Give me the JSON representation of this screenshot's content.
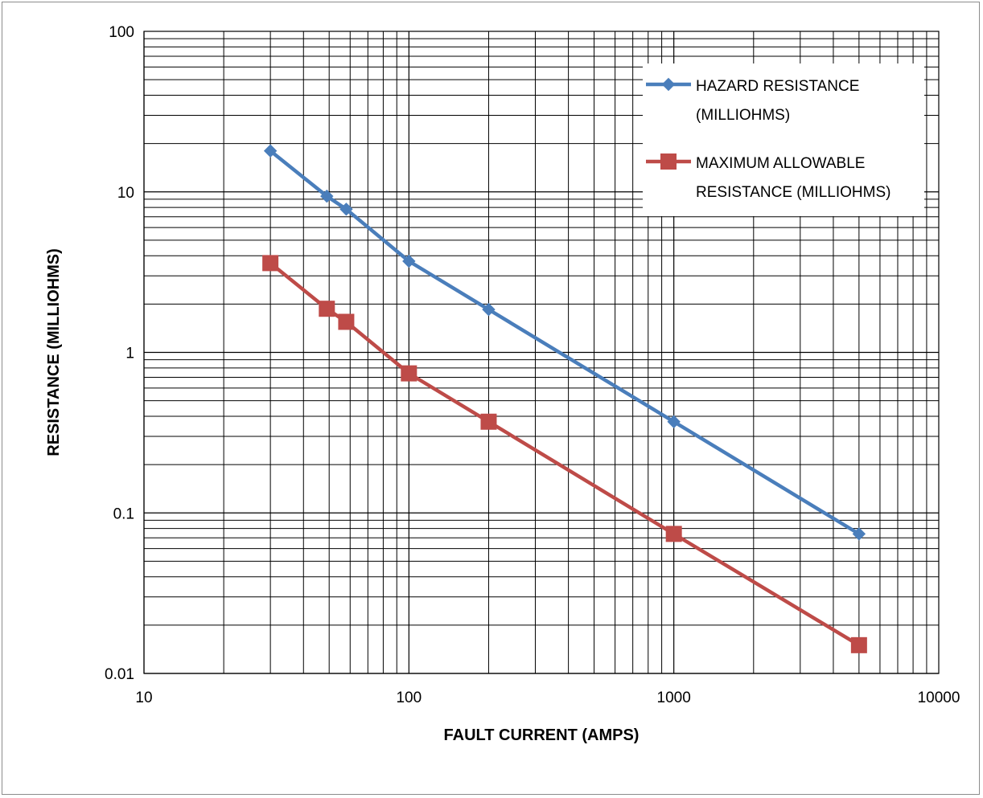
{
  "chart_data": {
    "type": "line",
    "xlabel": "FAULT CURRENT (AMPS)",
    "ylabel": "RESISTANCE  (MILLIOHMS)",
    "x_scale": "log",
    "y_scale": "log",
    "xlim": [
      10,
      10000
    ],
    "ylim": [
      0.01,
      100
    ],
    "x_ticks": [
      "10",
      "100",
      "1000",
      "10000"
    ],
    "y_ticks": [
      "100",
      "10",
      "1",
      "0.1",
      "0.01"
    ],
    "grid": true,
    "legend_position": "top-right",
    "series": [
      {
        "name": "HAZARD RESISTANCE (MILLIOHMS)",
        "legend_lines": [
          "HAZARD RESISTANCE",
          "(MILLIOHMS)"
        ],
        "color": "#4a7ebb",
        "marker": "diamond",
        "x": [
          30,
          49,
          58,
          100,
          200,
          1000,
          5000
        ],
        "y": [
          18,
          9.4,
          7.8,
          3.7,
          1.85,
          0.37,
          0.074
        ]
      },
      {
        "name": "MAXIMUM ALLOWABLE RESISTANCE (MILLIOHMS)",
        "legend_lines": [
          "MAXIMUM ALLOWABLE",
          "RESISTANCE (MILLIOHMS)"
        ],
        "color": "#be4b48",
        "marker": "square",
        "x": [
          30,
          49,
          58,
          100,
          200,
          1000,
          5000
        ],
        "y": [
          3.6,
          1.87,
          1.55,
          0.74,
          0.37,
          0.074,
          0.015
        ]
      }
    ]
  }
}
